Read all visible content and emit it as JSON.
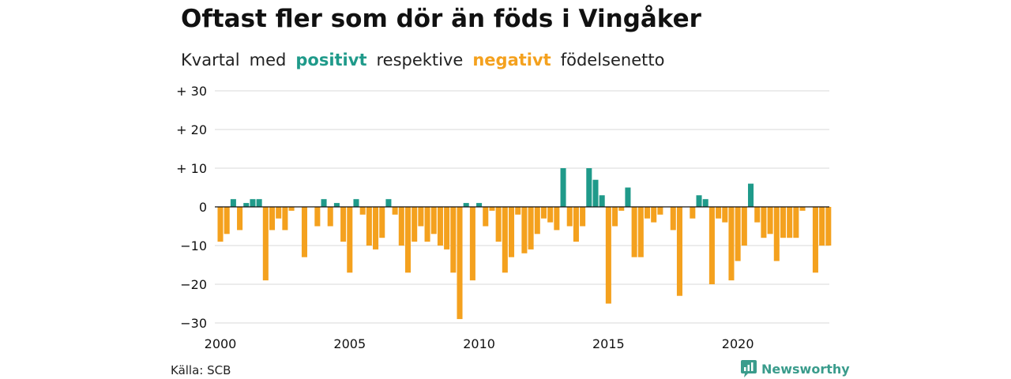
{
  "title": "Oftast fler som dör än föds i Vingåker",
  "subtitle": {
    "part1": "Kvartal",
    "part2": "med",
    "positive_word": "positivt",
    "part3": "respektive",
    "negative_word": "negativt",
    "part4": "födelsenetto"
  },
  "source": "Källa: SCB",
  "brand": "Newsworthy",
  "colors": {
    "positive": "#1f9a8a",
    "negative": "#f4a11e",
    "grid": "#d9d9d9",
    "brand": "#3a9c8c"
  },
  "chart_data": {
    "type": "bar",
    "x_unit": "quarter",
    "start_quarter": "2000Q1",
    "ylim": [
      -30,
      30
    ],
    "yticks": [
      {
        "value": 30,
        "label": "+ 30"
      },
      {
        "value": 20,
        "label": "+ 20"
      },
      {
        "value": 10,
        "label": "+ 10"
      },
      {
        "value": 0,
        "label": "0"
      },
      {
        "value": -10,
        "label": "−10"
      },
      {
        "value": -20,
        "label": "−20"
      },
      {
        "value": -30,
        "label": "−30"
      }
    ],
    "xticks": [
      "2000",
      "2005",
      "2010",
      "2015",
      "2020"
    ],
    "grid": true,
    "values": [
      -9,
      -7,
      2,
      -6,
      1,
      2,
      2,
      -19,
      -6,
      -3,
      -6,
      -1,
      0,
      -13,
      0,
      -5,
      2,
      -5,
      1,
      -9,
      -17,
      2,
      -2,
      -10,
      -11,
      -8,
      2,
      -2,
      -10,
      -17,
      -9,
      -5,
      -9,
      -7,
      -10,
      -11,
      -17,
      -29,
      1,
      -19,
      1,
      -5,
      -1,
      -9,
      -17,
      -13,
      -2,
      -12,
      -11,
      -7,
      -3,
      -4,
      -6,
      10,
      -5,
      -9,
      -5,
      10,
      7,
      3,
      -25,
      -5,
      -1,
      5,
      -13,
      -13,
      -3,
      -4,
      -2,
      0,
      -6,
      -23,
      0,
      -3,
      3,
      2,
      -20,
      -3,
      -4,
      -19,
      -14,
      -10,
      6,
      -4,
      -8,
      -7,
      -14,
      -8,
      -8,
      -8,
      -1,
      0,
      -17,
      -10,
      -10
    ]
  }
}
